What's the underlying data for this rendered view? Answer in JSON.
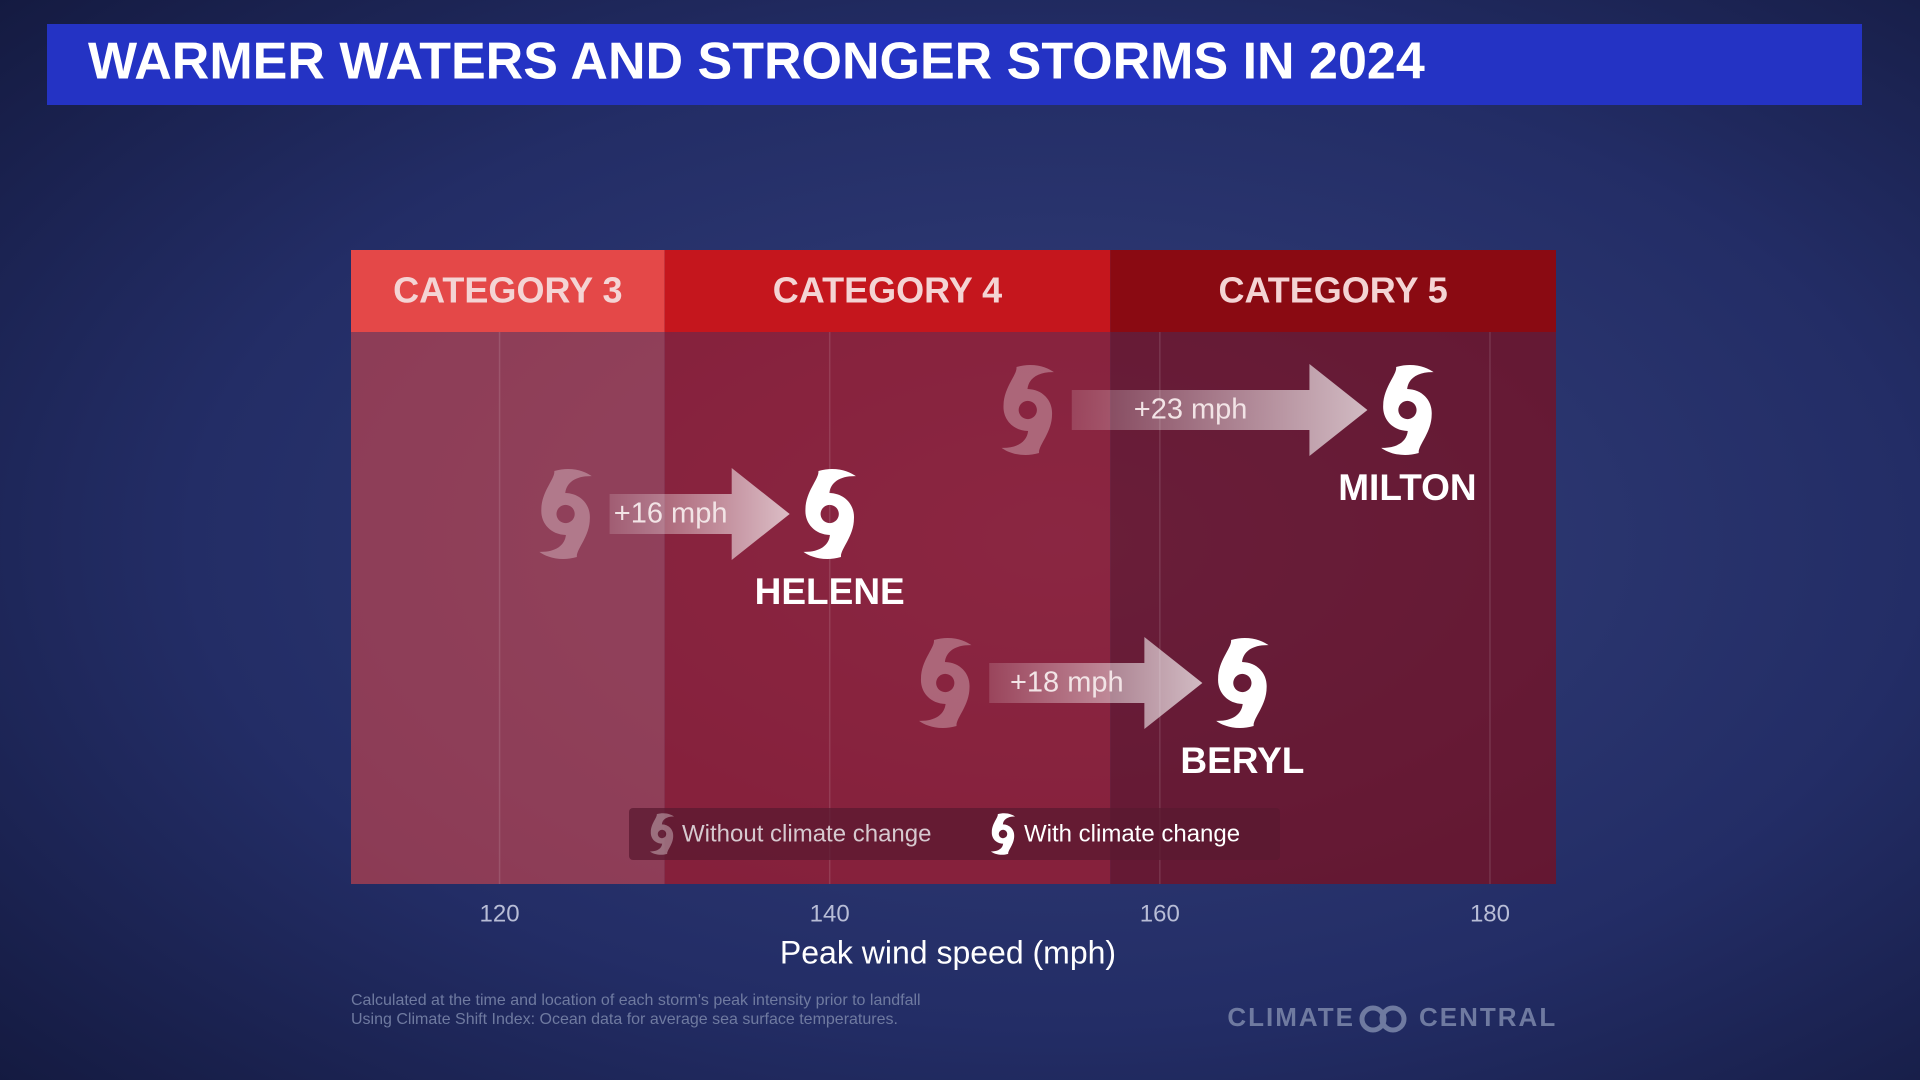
{
  "chart_data": {
    "type": "arrow",
    "title": "WARMER WATERS AND STRONGER STORMS IN 2024",
    "categories": [
      {
        "label": "CATEGORY 3",
        "color": "#e44848"
      },
      {
        "label": "CATEGORY 4",
        "min": 130,
        "color": "#c5161d"
      },
      {
        "label": "CATEGORY 5",
        "min": 157,
        "color": "#8a0a12"
      }
    ],
    "storms": [
      {
        "name": "MILTON",
        "without": 152,
        "with": 175,
        "change": 23,
        "change_label": "+23 mph"
      },
      {
        "name": "HELENE",
        "without": 124,
        "with": 140,
        "change": 16,
        "change_label": "+16 mph"
      },
      {
        "name": "BERYL",
        "without": 147,
        "with": 165,
        "change": 18,
        "change_label": "+18 mph"
      }
    ],
    "legend": [
      "Without climate change",
      "With climate change"
    ],
    "xlabel": "Peak wind speed (mph)",
    "xlim": [
      111,
      184
    ],
    "xticks": [
      120,
      140,
      160,
      180
    ],
    "grid": true,
    "footnotes": [
      "Calculated at the time and location of each storm's peak intensity prior to landfall",
      "Using Climate Shift Index: Ocean data for average sea surface temperatures."
    ],
    "source": [
      "CLIMATE",
      "CENTRAL"
    ]
  }
}
